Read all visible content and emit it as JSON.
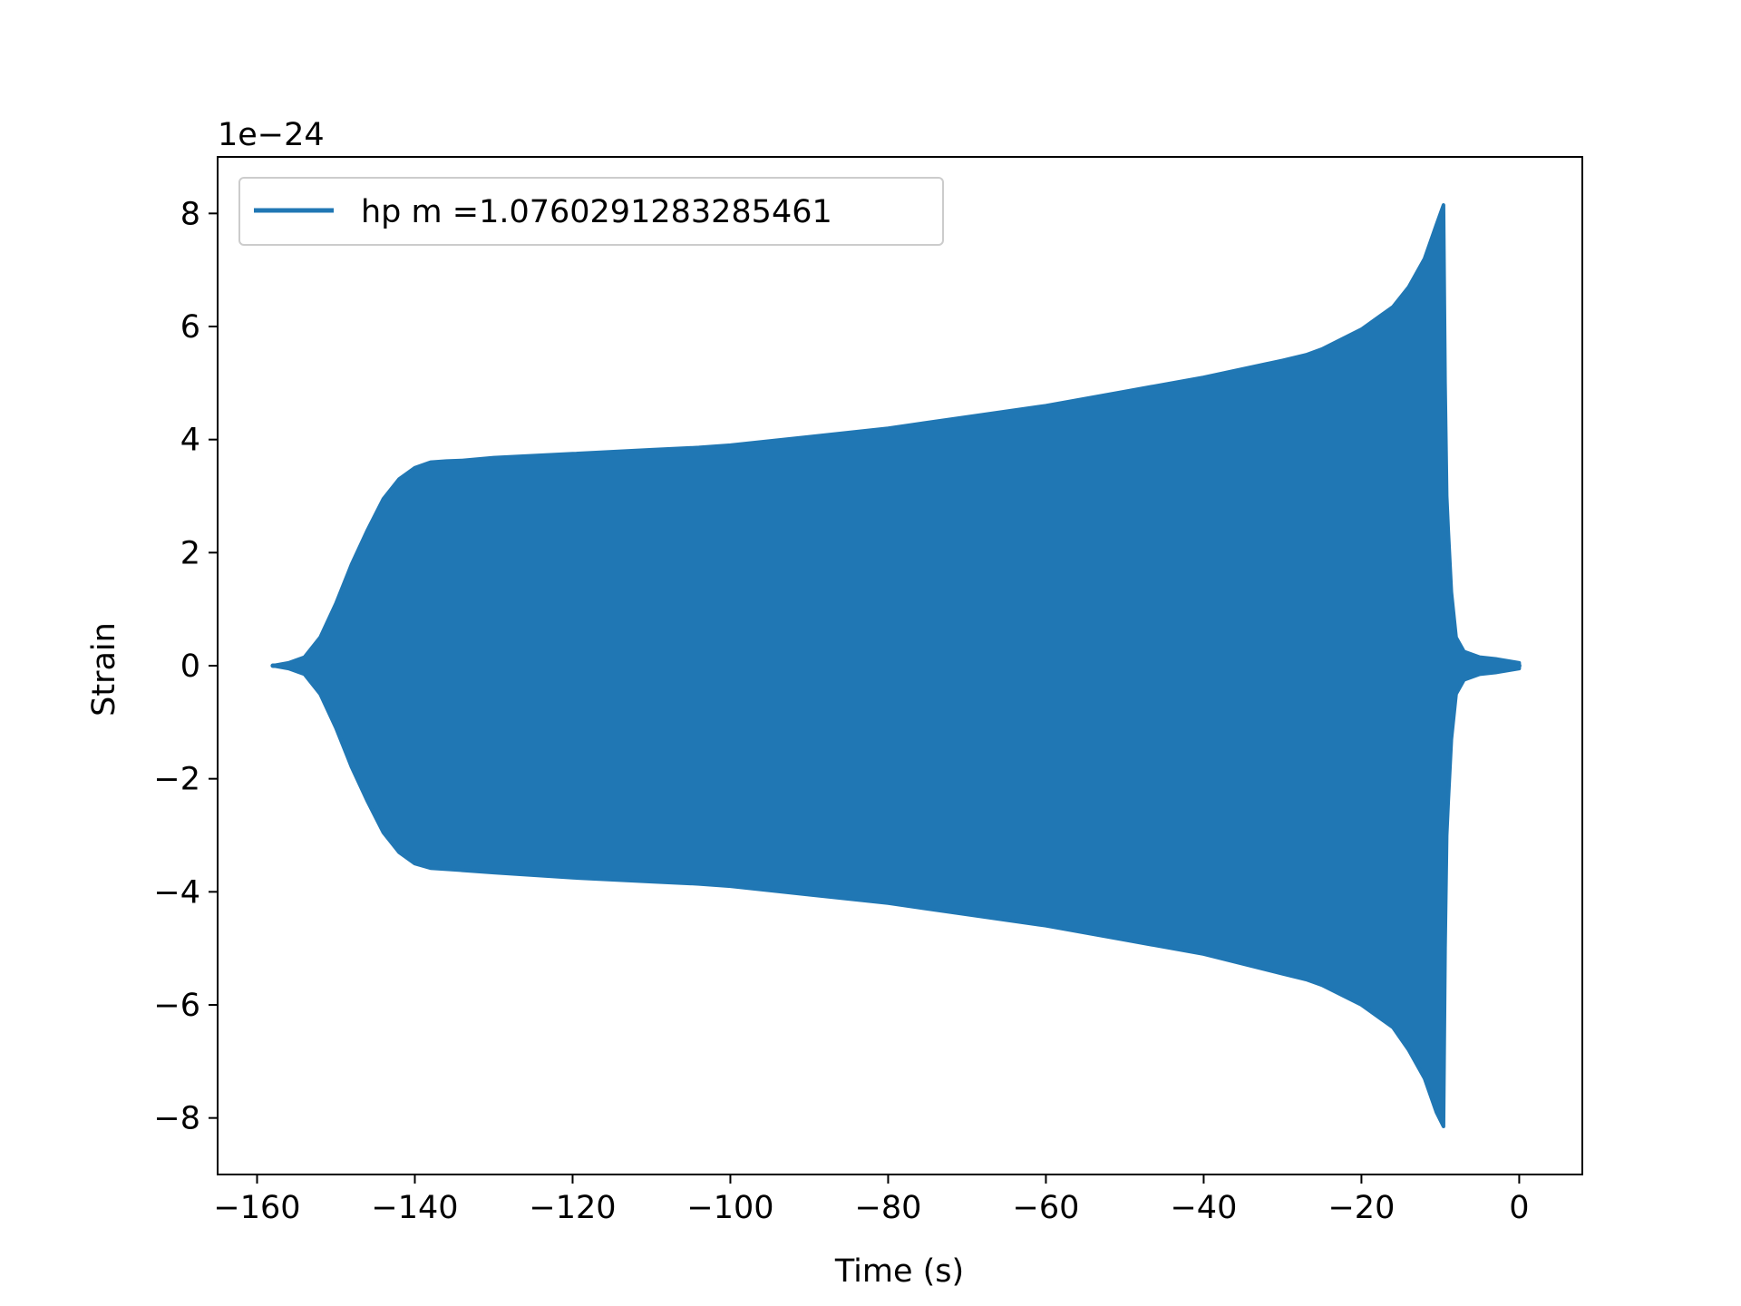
{
  "chart_data": {
    "type": "line",
    "title": "",
    "xlabel": "Time (s)",
    "ylabel": "Strain",
    "y_offset_label": "1e−24",
    "xlim": [
      -165,
      8
    ],
    "ylim": [
      -9,
      9
    ],
    "x_ticks": [
      -160,
      -140,
      -120,
      -100,
      -80,
      -60,
      -40,
      -20,
      0
    ],
    "x_tick_labels": [
      "−160",
      "−140",
      "−120",
      "−100",
      "−80",
      "−60",
      "−40",
      "−20",
      "0"
    ],
    "y_ticks": [
      -8,
      -6,
      -4,
      -2,
      0,
      2,
      4,
      6,
      8
    ],
    "y_tick_labels": [
      "−8",
      "−6",
      "−4",
      "−2",
      "0",
      "2",
      "4",
      "6",
      "8"
    ],
    "grid": false,
    "legend_position": "upper-left",
    "series": [
      {
        "name": "hp m =1.0760291283285461",
        "color": "#2077b4",
        "style": "oscillating-fill",
        "envelope": {
          "x": [
            -158,
            -156,
            -154,
            -152,
            -150,
            -148,
            -146,
            -144,
            -142,
            -140,
            -138,
            -136,
            -134,
            -130,
            -120,
            -110,
            -104,
            -100,
            -90,
            -80,
            -70,
            -60,
            -50,
            -40,
            -30,
            -27,
            -25,
            -20,
            -16,
            -14,
            -12,
            -10.5,
            -9.6,
            -9.4,
            -9.2,
            -9.0,
            -8.6,
            -8.0,
            -7.0,
            -5.0,
            -3.0,
            0
          ],
          "upper": [
            0.0,
            0.05,
            0.15,
            0.5,
            1.1,
            1.8,
            2.4,
            2.95,
            3.3,
            3.5,
            3.6,
            3.62,
            3.63,
            3.68,
            3.75,
            3.82,
            3.86,
            3.9,
            4.05,
            4.2,
            4.4,
            4.6,
            4.85,
            5.1,
            5.4,
            5.5,
            5.6,
            5.95,
            6.35,
            6.7,
            7.2,
            7.8,
            8.15,
            5.0,
            3.0,
            2.4,
            1.3,
            0.5,
            0.25,
            0.15,
            0.12,
            0.05
          ],
          "lower": [
            0.0,
            -0.05,
            -0.15,
            -0.5,
            -1.1,
            -1.8,
            -2.4,
            -2.95,
            -3.3,
            -3.5,
            -3.58,
            -3.6,
            -3.62,
            -3.66,
            -3.75,
            -3.82,
            -3.86,
            -3.9,
            -4.05,
            -4.2,
            -4.4,
            -4.6,
            -4.85,
            -5.1,
            -5.45,
            -5.55,
            -5.65,
            -6.0,
            -6.4,
            -6.8,
            -7.3,
            -7.9,
            -8.15,
            -5.0,
            -3.0,
            -2.4,
            -1.3,
            -0.5,
            -0.25,
            -0.15,
            -0.12,
            -0.05
          ]
        }
      }
    ]
  }
}
